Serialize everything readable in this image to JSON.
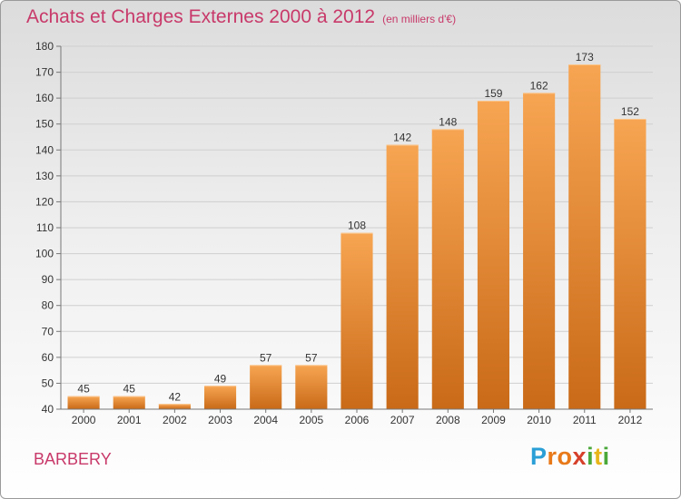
{
  "header": {
    "title": "Achats et Charges Externes 2000 à 2012",
    "subtitle": "(en milliers d'€)"
  },
  "town": "BARBERY",
  "logo": {
    "letters": [
      "P",
      "r",
      "o",
      "x",
      "i",
      "t",
      "i"
    ],
    "colors": [
      "#2a9fd6",
      "#e8791a",
      "#e8791a",
      "#d6402a",
      "#4aa83a",
      "#e8b51a",
      "#4aa83a"
    ]
  },
  "chart_data": {
    "type": "bar",
    "categories": [
      "2000",
      "2001",
      "2002",
      "2003",
      "2004",
      "2005",
      "2006",
      "2007",
      "2008",
      "2009",
      "2010",
      "2011",
      "2012"
    ],
    "values": [
      45,
      45,
      42,
      49,
      57,
      57,
      108,
      142,
      148,
      159,
      162,
      173,
      152
    ],
    "title": "Achats et Charges Externes 2000 à 2012",
    "ylim": [
      40,
      180
    ],
    "yticks": [
      40,
      50,
      60,
      70,
      80,
      90,
      100,
      110,
      120,
      130,
      140,
      150,
      160,
      170,
      180
    ],
    "grid": true,
    "colors": {
      "bar_top": "#f7a552",
      "bar_bottom": "#c96a18"
    }
  }
}
